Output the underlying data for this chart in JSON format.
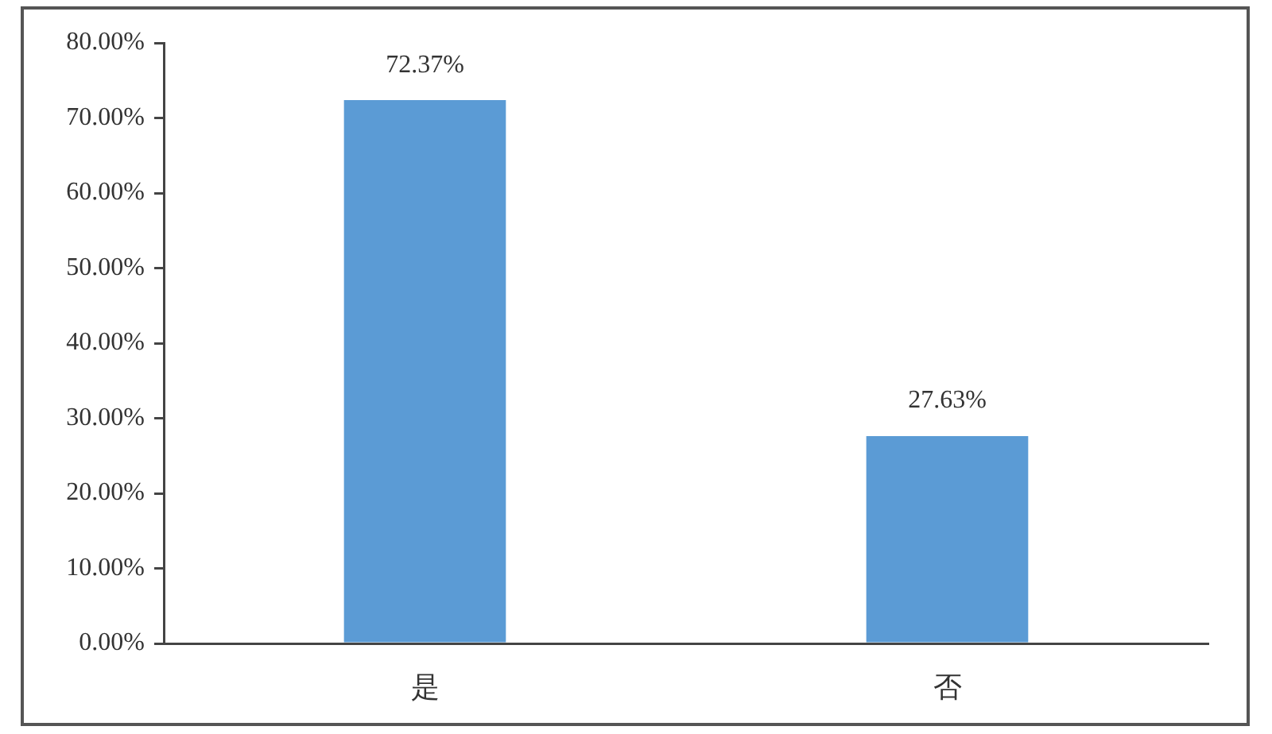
{
  "chart_data": {
    "type": "bar",
    "categories": [
      "是",
      "否"
    ],
    "values": [
      72.37,
      27.63
    ],
    "color": "#5b9bd5",
    "value_labels": [
      "72.37%",
      "27.63%"
    ],
    "ylim": [
      0,
      80
    ],
    "yticks": [
      {
        "value": 0,
        "label": "0.00%"
      },
      {
        "value": 10,
        "label": "10.00%"
      },
      {
        "value": 20,
        "label": "20.00%"
      },
      {
        "value": 30,
        "label": "30.00%"
      },
      {
        "value": 40,
        "label": "40.00%"
      },
      {
        "value": 50,
        "label": "50.00%"
      },
      {
        "value": 60,
        "label": "60.00%"
      },
      {
        "value": 70,
        "label": "70.00%"
      },
      {
        "value": 80,
        "label": "80.00%"
      }
    ]
  }
}
